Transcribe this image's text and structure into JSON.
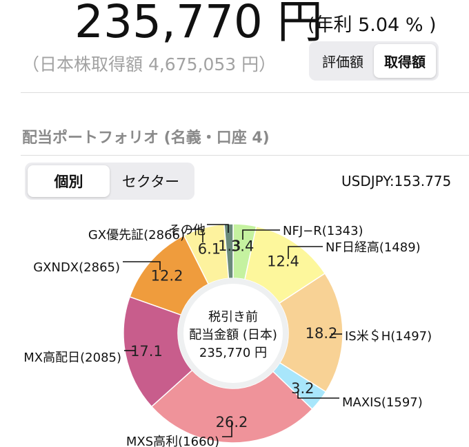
{
  "header": {
    "total_amount": "235,770 円",
    "annual_rate": "(年利 5.04 % )",
    "acquisition_text": "（日本株取得額 4,675,053 円）"
  },
  "value_toggle": {
    "options": [
      "評価額",
      "取得額"
    ],
    "selected": "取得額"
  },
  "section": {
    "title": "配当ポートフォリオ (名義・口座 4)"
  },
  "view_toggle": {
    "options": [
      "個別",
      "セクター"
    ],
    "selected": "個別"
  },
  "fx_rate": "USDJPY:153.775",
  "chart_data": {
    "type": "pie",
    "donut": true,
    "center_text": [
      "税引き前",
      "配当金額 (日本)",
      "235,770 円"
    ],
    "slices": [
      {
        "label": "NFJ−R(1343)",
        "value": 3.4,
        "display": "3.4",
        "color": "#c5f2a0"
      },
      {
        "label": "NF日経高(1489)",
        "value": 12.4,
        "display": "12.4",
        "color": "#fdf79c"
      },
      {
        "label": "IS米＄H(1497)",
        "value": 18.2,
        "display": "18.2",
        "color": "#f8d295"
      },
      {
        "label": "MAXIS(1597)",
        "value": 3.2,
        "display": "3.2",
        "color": "#a8e6fb"
      },
      {
        "label": "MXS高利(1660)",
        "value": 26.2,
        "display": "26.2",
        "color": "#ef939a"
      },
      {
        "label": "MX高配日(2085)",
        "value": 17.1,
        "display": "17.1",
        "color": "#c85d8c"
      },
      {
        "label": "GXNDX(2865)",
        "value": 12.2,
        "display": "12.2",
        "color": "#ef9c3d"
      },
      {
        "label": "GX優先証(2866)",
        "value": 6.1,
        "display": "6.1",
        "color": "#fdf29e"
      },
      {
        "label": "その他",
        "value": 1.3,
        "display": "1.3",
        "color": "#6a8a7a"
      }
    ]
  }
}
